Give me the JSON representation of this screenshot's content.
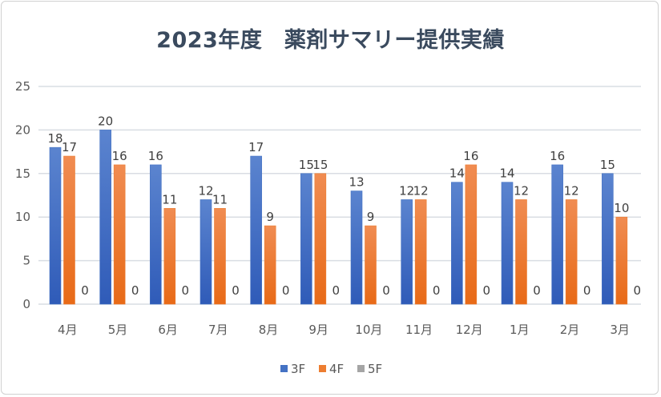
{
  "chart_data": {
    "type": "bar",
    "title": "2023年度　薬剤サマリー提供実績",
    "xlabel": "",
    "ylabel": "",
    "ylim": [
      0,
      25
    ],
    "yticks": [
      "0",
      "5",
      "10",
      "15",
      "20",
      "25"
    ],
    "grid": true,
    "legend_position": "bottom",
    "categories": [
      "4月",
      "5月",
      "6月",
      "7月",
      "8月",
      "9月",
      "10月",
      "11月",
      "12月",
      "1月",
      "2月",
      "3月"
    ],
    "series": [
      {
        "name": "3F",
        "color": "#4472c4",
        "values": [
          18,
          20,
          16,
          12,
          17,
          15,
          13,
          12,
          14,
          14,
          16,
          15
        ]
      },
      {
        "name": "4F",
        "color": "#ed7d31",
        "values": [
          17,
          16,
          11,
          11,
          9,
          15,
          9,
          12,
          16,
          12,
          12,
          10
        ]
      },
      {
        "name": "5F",
        "color": "#a5a5a5",
        "values": [
          0,
          0,
          0,
          0,
          0,
          0,
          0,
          0,
          0,
          0,
          0,
          0
        ]
      }
    ]
  }
}
